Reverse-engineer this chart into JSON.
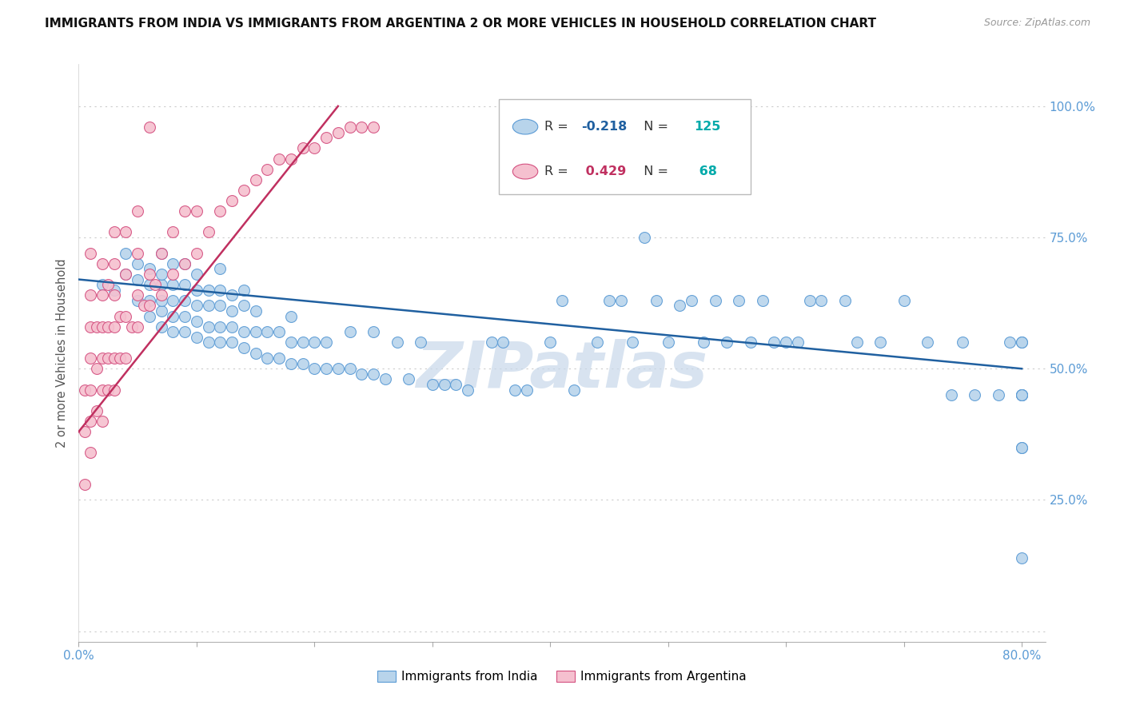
{
  "title": "IMMIGRANTS FROM INDIA VS IMMIGRANTS FROM ARGENTINA 2 OR MORE VEHICLES IN HOUSEHOLD CORRELATION CHART",
  "source": "Source: ZipAtlas.com",
  "ylabel": "2 or more Vehicles in Household",
  "xlim": [
    0.0,
    0.82
  ],
  "ylim": [
    -0.02,
    1.08
  ],
  "xticks": [
    0.0,
    0.1,
    0.2,
    0.3,
    0.4,
    0.5,
    0.6,
    0.7,
    0.8
  ],
  "xticklabels": [
    "0.0%",
    "",
    "",
    "",
    "",
    "",
    "",
    "",
    "80.0%"
  ],
  "yticks": [
    0.0,
    0.25,
    0.5,
    0.75,
    1.0
  ],
  "yticklabels_right": [
    "",
    "25.0%",
    "50.0%",
    "75.0%",
    "100.0%"
  ],
  "legend_blue_r": "-0.218",
  "legend_blue_n": "125",
  "legend_pink_r": "0.429",
  "legend_pink_n": "68",
  "legend_label_blue": "Immigrants from India",
  "legend_label_pink": "Immigrants from Argentina",
  "blue_color": "#b8d4eb",
  "blue_edge_color": "#5b9bd5",
  "pink_color": "#f5c0cf",
  "pink_edge_color": "#d45080",
  "trend_blue_color": "#2060a0",
  "trend_pink_color": "#c03060",
  "watermark": "ZIPatlas",
  "watermark_color": "#c8d8ea",
  "blue_trend_x": [
    0.0,
    0.8
  ],
  "blue_trend_y": [
    0.67,
    0.5
  ],
  "pink_trend_x": [
    0.0,
    0.22
  ],
  "pink_trend_y": [
    0.38,
    1.0
  ],
  "blue_scatter_x": [
    0.02,
    0.03,
    0.04,
    0.04,
    0.05,
    0.05,
    0.05,
    0.06,
    0.06,
    0.06,
    0.06,
    0.07,
    0.07,
    0.07,
    0.07,
    0.07,
    0.07,
    0.08,
    0.08,
    0.08,
    0.08,
    0.08,
    0.09,
    0.09,
    0.09,
    0.09,
    0.09,
    0.1,
    0.1,
    0.1,
    0.1,
    0.1,
    0.11,
    0.11,
    0.11,
    0.11,
    0.12,
    0.12,
    0.12,
    0.12,
    0.12,
    0.13,
    0.13,
    0.13,
    0.13,
    0.14,
    0.14,
    0.14,
    0.14,
    0.15,
    0.15,
    0.15,
    0.16,
    0.16,
    0.17,
    0.17,
    0.18,
    0.18,
    0.18,
    0.19,
    0.19,
    0.2,
    0.2,
    0.21,
    0.21,
    0.22,
    0.23,
    0.23,
    0.24,
    0.25,
    0.25,
    0.26,
    0.27,
    0.28,
    0.29,
    0.3,
    0.31,
    0.32,
    0.33,
    0.35,
    0.36,
    0.37,
    0.38,
    0.4,
    0.41,
    0.42,
    0.44,
    0.45,
    0.46,
    0.47,
    0.48,
    0.49,
    0.5,
    0.51,
    0.52,
    0.53,
    0.54,
    0.55,
    0.56,
    0.57,
    0.58,
    0.59,
    0.6,
    0.61,
    0.62,
    0.63,
    0.65,
    0.66,
    0.68,
    0.7,
    0.72,
    0.74,
    0.75,
    0.76,
    0.78,
    0.79,
    0.8,
    0.8,
    0.8,
    0.8,
    0.8,
    0.8,
    0.8,
    0.8,
    0.8
  ],
  "blue_scatter_y": [
    0.66,
    0.65,
    0.68,
    0.72,
    0.63,
    0.67,
    0.7,
    0.6,
    0.63,
    0.66,
    0.69,
    0.58,
    0.61,
    0.63,
    0.66,
    0.68,
    0.72,
    0.57,
    0.6,
    0.63,
    0.66,
    0.7,
    0.57,
    0.6,
    0.63,
    0.66,
    0.7,
    0.56,
    0.59,
    0.62,
    0.65,
    0.68,
    0.55,
    0.58,
    0.62,
    0.65,
    0.55,
    0.58,
    0.62,
    0.65,
    0.69,
    0.55,
    0.58,
    0.61,
    0.64,
    0.54,
    0.57,
    0.62,
    0.65,
    0.53,
    0.57,
    0.61,
    0.52,
    0.57,
    0.52,
    0.57,
    0.51,
    0.55,
    0.6,
    0.51,
    0.55,
    0.5,
    0.55,
    0.5,
    0.55,
    0.5,
    0.5,
    0.57,
    0.49,
    0.49,
    0.57,
    0.48,
    0.55,
    0.48,
    0.55,
    0.47,
    0.47,
    0.47,
    0.46,
    0.55,
    0.55,
    0.46,
    0.46,
    0.55,
    0.63,
    0.46,
    0.55,
    0.63,
    0.63,
    0.55,
    0.75,
    0.63,
    0.55,
    0.62,
    0.63,
    0.55,
    0.63,
    0.55,
    0.63,
    0.55,
    0.63,
    0.55,
    0.55,
    0.55,
    0.63,
    0.63,
    0.63,
    0.55,
    0.55,
    0.63,
    0.55,
    0.45,
    0.55,
    0.45,
    0.45,
    0.55,
    0.45,
    0.35,
    0.55,
    0.45,
    0.45,
    0.35,
    0.55,
    0.45,
    0.14
  ],
  "pink_scatter_x": [
    0.005,
    0.005,
    0.005,
    0.01,
    0.01,
    0.01,
    0.01,
    0.01,
    0.01,
    0.01,
    0.015,
    0.015,
    0.015,
    0.02,
    0.02,
    0.02,
    0.02,
    0.02,
    0.02,
    0.025,
    0.025,
    0.025,
    0.025,
    0.03,
    0.03,
    0.03,
    0.03,
    0.03,
    0.03,
    0.035,
    0.035,
    0.04,
    0.04,
    0.04,
    0.04,
    0.045,
    0.05,
    0.05,
    0.05,
    0.05,
    0.055,
    0.06,
    0.06,
    0.06,
    0.065,
    0.07,
    0.07,
    0.08,
    0.08,
    0.09,
    0.09,
    0.1,
    0.1,
    0.11,
    0.12,
    0.13,
    0.14,
    0.15,
    0.16,
    0.17,
    0.18,
    0.19,
    0.2,
    0.21,
    0.22,
    0.23,
    0.24,
    0.25
  ],
  "pink_scatter_y": [
    0.28,
    0.38,
    0.46,
    0.34,
    0.4,
    0.46,
    0.52,
    0.58,
    0.64,
    0.72,
    0.42,
    0.5,
    0.58,
    0.4,
    0.46,
    0.52,
    0.58,
    0.64,
    0.7,
    0.46,
    0.52,
    0.58,
    0.66,
    0.46,
    0.52,
    0.58,
    0.64,
    0.7,
    0.76,
    0.52,
    0.6,
    0.52,
    0.6,
    0.68,
    0.76,
    0.58,
    0.58,
    0.64,
    0.72,
    0.8,
    0.62,
    0.62,
    0.68,
    0.96,
    0.66,
    0.64,
    0.72,
    0.68,
    0.76,
    0.7,
    0.8,
    0.72,
    0.8,
    0.76,
    0.8,
    0.82,
    0.84,
    0.86,
    0.88,
    0.9,
    0.9,
    0.92,
    0.92,
    0.94,
    0.95,
    0.96,
    0.96,
    0.96
  ]
}
